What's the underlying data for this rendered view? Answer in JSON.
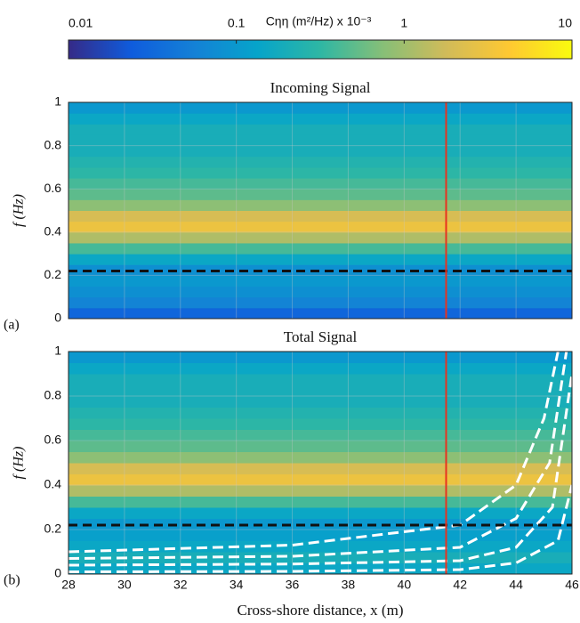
{
  "colorbar": {
    "label": "Cηη (m²/Hz) x 10⁻³",
    "lim": [
      0.01,
      10
    ],
    "ticks": [
      0.01,
      0.1,
      1,
      10
    ],
    "colormap": [
      "#352a87",
      "#0f5cdd",
      "#1481d6",
      "#06a4ca",
      "#2eb7a4",
      "#87bf77",
      "#d1bb59",
      "#fec832",
      "#f9fb0e"
    ]
  },
  "chart_data": [
    {
      "type": "heatmap",
      "title": "Incoming Signal",
      "label": "(a)",
      "ylabel": "f (Hz)",
      "xlim": [
        28,
        46
      ],
      "xticks": [
        28,
        30,
        32,
        34,
        36,
        38,
        40,
        42,
        44,
        46
      ],
      "show_xtick_labels": false,
      "ylim": [
        0,
        1
      ],
      "yticks": [
        0,
        0.2,
        0.4,
        0.6,
        0.8,
        1
      ],
      "grid": true,
      "fbins": [
        0,
        0.05,
        0.1,
        0.15,
        0.2,
        0.25,
        0.3,
        0.35,
        0.4,
        0.45,
        0.5,
        0.55,
        0.6,
        0.65,
        0.7,
        0.75,
        0.8,
        0.85,
        0.9,
        0.95,
        1
      ],
      "values": [
        0.03,
        0.06,
        0.08,
        0.1,
        0.08,
        0.15,
        0.4,
        1.2,
        3,
        2,
        0.8,
        0.5,
        0.4,
        0.3,
        0.25,
        0.2,
        0.2,
        0.2,
        0.15,
        0.1
      ],
      "vline": 41.5,
      "vline_color": "#e8321e",
      "hline": 0.22,
      "hline_color": "#111111"
    },
    {
      "type": "heatmap",
      "title": "Total Signal",
      "label": "(b)",
      "ylabel": "f (Hz)",
      "xlabel": "Cross-shore distance, x (m)",
      "xlim": [
        28,
        46
      ],
      "xticks": [
        28,
        30,
        32,
        34,
        36,
        38,
        40,
        42,
        44,
        46
      ],
      "show_xtick_labels": true,
      "ylim": [
        0,
        1
      ],
      "yticks": [
        0,
        0.2,
        0.4,
        0.6,
        0.8,
        1
      ],
      "grid": true,
      "fbins": [
        0,
        0.05,
        0.1,
        0.15,
        0.2,
        0.25,
        0.3,
        0.35,
        0.4,
        0.45,
        0.5,
        0.55,
        0.6,
        0.65,
        0.7,
        0.75,
        0.8,
        0.85,
        0.9,
        0.95,
        1
      ],
      "values": [
        0.15,
        0.2,
        0.15,
        0.12,
        0.1,
        0.15,
        0.4,
        1.2,
        3,
        2,
        0.8,
        0.5,
        0.4,
        0.3,
        0.25,
        0.2,
        0.2,
        0.2,
        0.15,
        0.1
      ],
      "vline": 41.5,
      "vline_color": "#e8321e",
      "hline": 0.22,
      "hline_color": "#111111",
      "curves": {
        "color": "#ffffff",
        "lines": [
          {
            "x": [
              28,
              36,
              42,
              44,
              45,
              45.5
            ],
            "y": [
              0.1,
              0.13,
              0.22,
              0.4,
              0.7,
              1
            ]
          },
          {
            "x": [
              28,
              36,
              42,
              44,
              45.2,
              45.8
            ],
            "y": [
              0.07,
              0.08,
              0.12,
              0.25,
              0.5,
              1
            ]
          },
          {
            "x": [
              28,
              36,
              42,
              44,
              45.3,
              46
            ],
            "y": [
              0.04,
              0.045,
              0.06,
              0.12,
              0.3,
              0.9
            ]
          },
          {
            "x": [
              28,
              36,
              42,
              44,
              45.5,
              46
            ],
            "y": [
              0.01,
              0.012,
              0.02,
              0.05,
              0.15,
              0.4
            ]
          }
        ]
      }
    }
  ]
}
